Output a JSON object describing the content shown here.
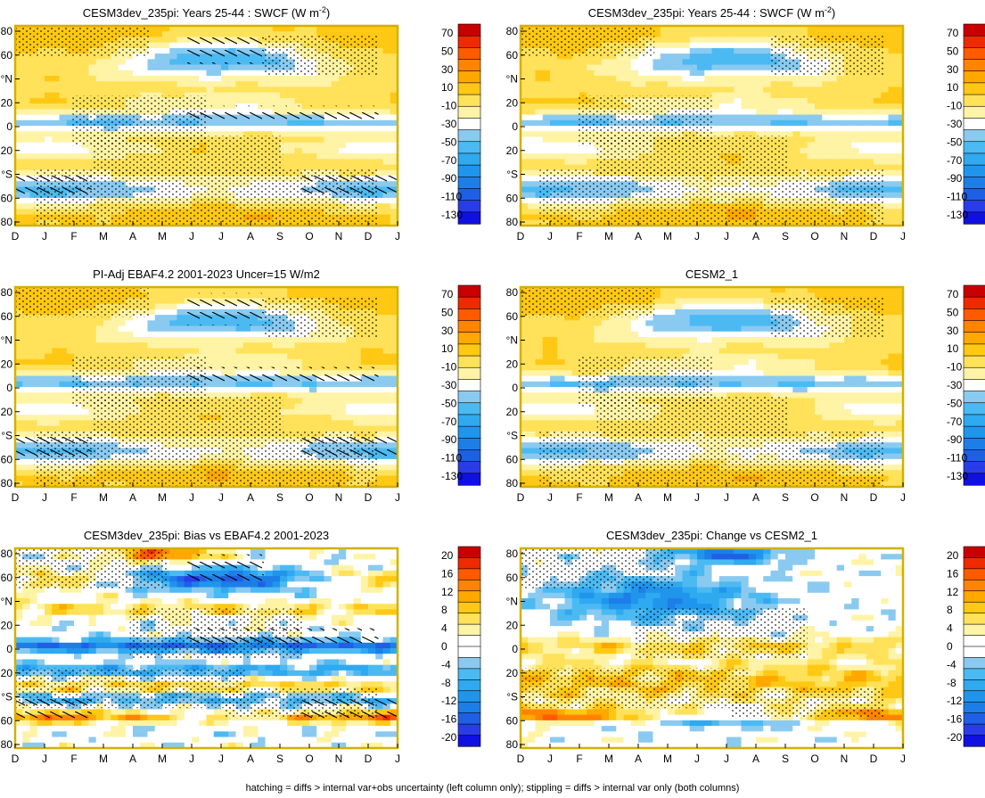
{
  "footer": "hatching = diffs > internal var+obs uncertainty (left column only); stippling = diffs > internal var only (both columns)",
  "colors": {
    "frame": "#d4b000",
    "full_scale": [
      "#1010e0",
      "#2a3ce8",
      "#1f5fe6",
      "#1d7ee8",
      "#2095ec",
      "#2fa9f0",
      "#4cbaf2",
      "#8acaf0",
      "#ffffff",
      "#fff3a6",
      "#ffe25a",
      "#ffc814",
      "#ffa800",
      "#ff8400",
      "#ff5a00",
      "#ef2a00",
      "#c80000"
    ],
    "diff_scale": [
      "#1010e0",
      "#2a3ce8",
      "#1f5fe6",
      "#1d7ee8",
      "#2095ec",
      "#2fa9f0",
      "#4cbaf2",
      "#8acaf0",
      "#ffffff",
      "#ffffff",
      "#fff3a6",
      "#ffe25a",
      "#ffc814",
      "#ffa800",
      "#ff8400",
      "#ff5a00",
      "#ef2a00",
      "#c80000"
    ]
  },
  "chart_data": [
    {
      "id": "p1",
      "type": "heatmap",
      "title": "CESM3dev_235pi: Years 25-44 : SWCF (W m",
      "title_sup": "-2",
      "title_end": ")",
      "months": [
        "D",
        "J",
        "F",
        "M",
        "A",
        "M",
        "J",
        "J",
        "A",
        "S",
        "O",
        "N",
        "D",
        "J"
      ],
      "lat_labels": [
        "80",
        "60",
        "°N",
        "20",
        "0",
        "20",
        "°S",
        "60",
        "80"
      ],
      "colorbar": [
        "70",
        "50",
        "30",
        "10",
        "-10",
        "-30",
        "-50",
        "-70",
        "-90",
        "-110",
        "-130"
      ],
      "scale": "full",
      "hatch": true,
      "stipple": true,
      "lat_range": [
        -90,
        90
      ],
      "x_range": [
        0,
        13
      ]
    },
    {
      "id": "p2",
      "type": "heatmap",
      "title": "CESM3dev_235pi: Years 25-44 : SWCF (W m",
      "title_sup": "-2",
      "title_end": ")",
      "months": [
        "D",
        "J",
        "F",
        "M",
        "A",
        "M",
        "J",
        "J",
        "A",
        "S",
        "O",
        "N",
        "D",
        "J"
      ],
      "lat_labels": [
        "80",
        "60",
        "°N",
        "20",
        "0",
        "20",
        "°S",
        "60",
        "80"
      ],
      "colorbar": [
        "70",
        "50",
        "30",
        "10",
        "-10",
        "-30",
        "-50",
        "-70",
        "-90",
        "-110",
        "-130"
      ],
      "scale": "full",
      "hatch": false,
      "stipple": true,
      "lat_range": [
        -90,
        90
      ],
      "x_range": [
        0,
        13
      ]
    },
    {
      "id": "p3",
      "type": "heatmap",
      "title": "PI-Adj EBAF4.2 2001-2023 Uncer=15 W/m2",
      "title_sup": "",
      "title_end": "",
      "months": [
        "D",
        "J",
        "F",
        "M",
        "A",
        "M",
        "J",
        "J",
        "A",
        "S",
        "O",
        "N",
        "D",
        "J"
      ],
      "lat_labels": [
        "80",
        "60",
        "°N",
        "20",
        "0",
        "20",
        "°S",
        "60",
        "80"
      ],
      "colorbar": [
        "70",
        "50",
        "30",
        "10",
        "-10",
        "-30",
        "-50",
        "-70",
        "-90",
        "-110",
        "-130"
      ],
      "scale": "full",
      "hatch": true,
      "stipple": true,
      "lat_range": [
        -90,
        90
      ],
      "x_range": [
        0,
        13
      ]
    },
    {
      "id": "p4",
      "type": "heatmap",
      "title": "CESM2_1",
      "title_sup": "",
      "title_end": "",
      "months": [
        "D",
        "J",
        "F",
        "M",
        "A",
        "M",
        "J",
        "J",
        "A",
        "S",
        "O",
        "N",
        "D",
        "J"
      ],
      "lat_labels": [
        "80",
        "60",
        "°N",
        "20",
        "0",
        "20",
        "°S",
        "60",
        "80"
      ],
      "colorbar": [
        "70",
        "50",
        "30",
        "10",
        "-10",
        "-30",
        "-50",
        "-70",
        "-90",
        "-110",
        "-130"
      ],
      "scale": "full",
      "hatch": false,
      "stipple": true,
      "lat_range": [
        -90,
        90
      ],
      "x_range": [
        0,
        13
      ]
    },
    {
      "id": "p5",
      "type": "heatmap",
      "title": "CESM3dev_235pi: Bias vs EBAF4.2 2001-2023",
      "title_sup": "",
      "title_end": "",
      "months": [
        "D",
        "J",
        "F",
        "M",
        "A",
        "M",
        "J",
        "J",
        "A",
        "S",
        "O",
        "N",
        "D",
        "J"
      ],
      "lat_labels": [
        "80",
        "60",
        "°N",
        "20",
        "0",
        "20",
        "°S",
        "60",
        "80"
      ],
      "colorbar": [
        "20",
        "16",
        "12",
        "8",
        "4",
        "0",
        "-4",
        "-8",
        "-12",
        "-16",
        "-20"
      ],
      "scale": "diff",
      "hatch": true,
      "stipple": true,
      "lat_range": [
        -90,
        90
      ],
      "x_range": [
        0,
        13
      ]
    },
    {
      "id": "p6",
      "type": "heatmap",
      "title": "CESM3dev_235pi: Change vs CESM2_1",
      "title_sup": "",
      "title_end": "",
      "months": [
        "D",
        "J",
        "F",
        "M",
        "A",
        "M",
        "J",
        "J",
        "A",
        "S",
        "O",
        "N",
        "D",
        "J"
      ],
      "lat_labels": [
        "80",
        "60",
        "°N",
        "20",
        "0",
        "20",
        "°S",
        "60",
        "80"
      ],
      "colorbar": [
        "20",
        "16",
        "12",
        "8",
        "4",
        "0",
        "-4",
        "-8",
        "-12",
        "-16",
        "-20"
      ],
      "scale": "diff",
      "hatch": false,
      "stipple": true,
      "lat_range": [
        -90,
        90
      ],
      "x_range": [
        0,
        13
      ]
    }
  ]
}
